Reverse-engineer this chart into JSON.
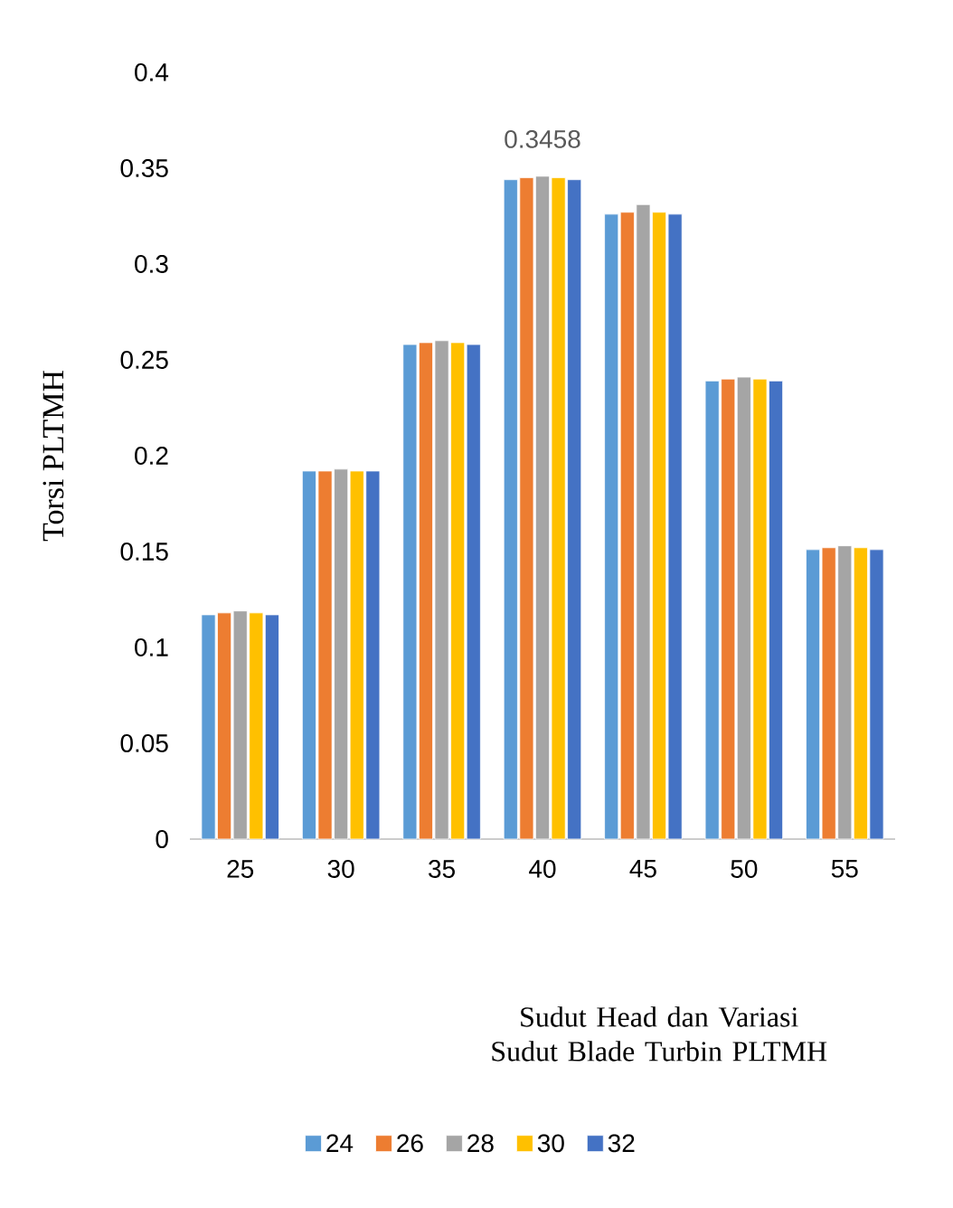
{
  "chart_data": {
    "type": "bar",
    "xlabel": "Sudut Head dan Variasi Sudut Blade Turbin PLTMH",
    "ylabel": "Torsi PLTMH",
    "categories": [
      "25",
      "30",
      "35",
      "40",
      "45",
      "50",
      "55"
    ],
    "series": [
      {
        "name": "24",
        "color": "#5b9bd5",
        "values": [
          0.117,
          0.192,
          0.258,
          0.344,
          0.326,
          0.239,
          0.151
        ]
      },
      {
        "name": "26",
        "color": "#ed7d31",
        "values": [
          0.118,
          0.192,
          0.259,
          0.345,
          0.327,
          0.24,
          0.152
        ]
      },
      {
        "name": "28",
        "color": "#a5a5a5",
        "values": [
          0.119,
          0.193,
          0.26,
          0.3458,
          0.331,
          0.241,
          0.153
        ]
      },
      {
        "name": "30",
        "color": "#ffc000",
        "values": [
          0.118,
          0.192,
          0.259,
          0.345,
          0.327,
          0.24,
          0.152
        ]
      },
      {
        "name": "32",
        "color": "#4472c4",
        "values": [
          0.117,
          0.192,
          0.258,
          0.344,
          0.326,
          0.239,
          0.151
        ]
      }
    ],
    "ylim": [
      0,
      0.4
    ],
    "yticks": [
      0,
      0.05,
      0.1,
      0.15,
      0.2,
      0.25,
      0.3,
      0.35,
      0.4
    ],
    "annotations": [
      {
        "text": "0.3458",
        "x": "40",
        "y": 0.3458
      }
    ],
    "legend": "bottom"
  }
}
